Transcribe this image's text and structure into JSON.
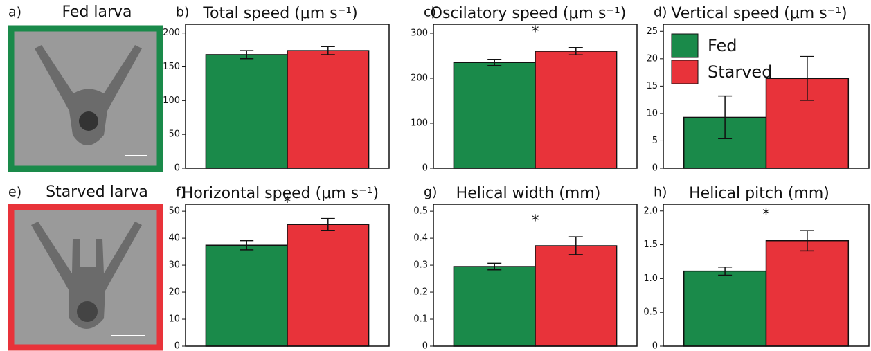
{
  "images": [
    {
      "label": "a)",
      "title": "Fed larva",
      "color": "#1a8a4a"
    },
    {
      "label": "e)",
      "title": "Starved larva",
      "color": "#e8333a"
    }
  ],
  "chart_data": [
    {
      "type": "bar",
      "panel_label": "b)",
      "title": "Total speed (μm s⁻¹)",
      "ylim": [
        0,
        213
      ],
      "yticks": [
        0,
        50,
        100,
        150,
        200
      ],
      "series": [
        {
          "color": "#1a8a4a",
          "values": [
            168
          ],
          "errors": [
            6
          ]
        },
        {
          "color": "#e8333a",
          "values": [
            174
          ],
          "errors": [
            6
          ]
        }
      ]
    },
    {
      "type": "bar",
      "panel_label": "c)",
      "title": "Oscilatory speed (μm s⁻¹)",
      "ylim": [
        0,
        320
      ],
      "yticks": [
        0,
        100,
        200,
        300
      ],
      "annotation": "*",
      "series": [
        {
          "color": "#1a8a4a",
          "values": [
            235
          ],
          "errors": [
            7
          ]
        },
        {
          "color": "#e8333a",
          "values": [
            260
          ],
          "errors": [
            8
          ]
        }
      ]
    },
    {
      "type": "bar",
      "panel_label": "d)",
      "title": "Vertical speed (μm s⁻¹)",
      "ylim": [
        0,
        26.3
      ],
      "yticks": [
        0,
        5,
        10,
        15,
        20,
        25
      ],
      "legend": "upper left",
      "series": [
        {
          "name": "Fed",
          "color": "#1a8a4a",
          "values": [
            9.3
          ],
          "errors": [
            3.9
          ]
        },
        {
          "name": "Starved",
          "color": "#e8333a",
          "values": [
            16.4
          ],
          "errors": [
            4
          ]
        }
      ]
    },
    {
      "type": "bar",
      "panel_label": "f)",
      "title": "Horizontal speed (μm s⁻¹)",
      "ylim": [
        0,
        52.6
      ],
      "yticks": [
        0,
        10,
        20,
        30,
        40,
        50
      ],
      "annotation": "*",
      "series": [
        {
          "color": "#1a8a4a",
          "values": [
            37.4
          ],
          "errors": [
            1.7
          ]
        },
        {
          "color": "#e8333a",
          "values": [
            45.1
          ],
          "errors": [
            2.2
          ]
        }
      ]
    },
    {
      "type": "bar",
      "panel_label": "g)",
      "title": "Helical width (mm)",
      "ylim": [
        0,
        0.526
      ],
      "yticks": [
        0,
        0.1,
        0.2,
        0.3,
        0.4,
        0.5
      ],
      "annotation": "*",
      "series": [
        {
          "color": "#1a8a4a",
          "values": [
            0.295
          ],
          "errors": [
            0.012
          ]
        },
        {
          "color": "#e8333a",
          "values": [
            0.372
          ],
          "errors": [
            0.033
          ]
        }
      ]
    },
    {
      "type": "bar",
      "panel_label": "h)",
      "title": "Helical pitch (mm)",
      "ylim": [
        0,
        2.1
      ],
      "yticks": [
        0,
        0.5,
        {
          "value": 1,
          "label": "1.0"
        },
        1.5,
        {
          "value": 2,
          "label": "2.0"
        }
      ],
      "annotation": "*",
      "series": [
        {
          "color": "#1a8a4a",
          "values": [
            1.11
          ],
          "errors": [
            0.06
          ]
        },
        {
          "color": "#e8333a",
          "values": [
            1.56
          ],
          "errors": [
            0.15
          ]
        }
      ]
    }
  ]
}
